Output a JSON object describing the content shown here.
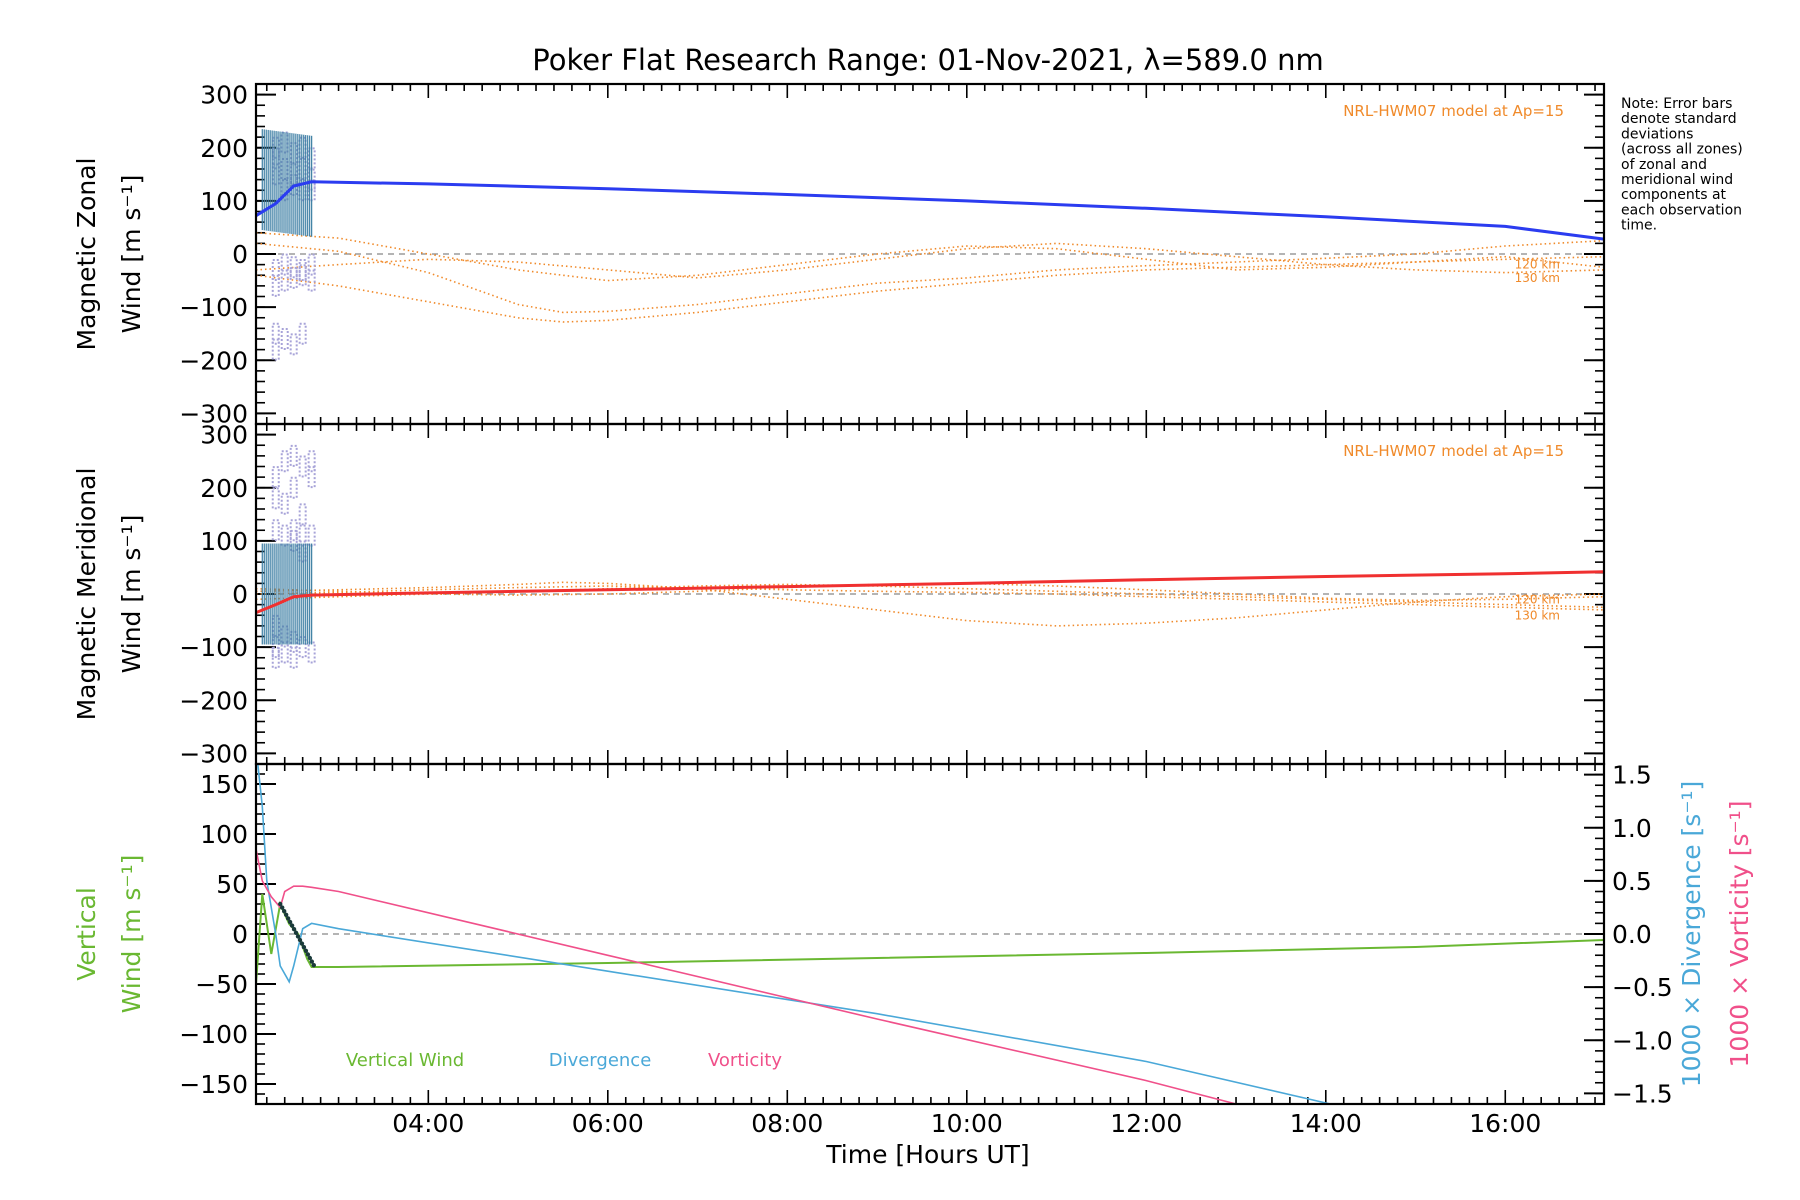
{
  "title": "Poker Flat Research Range: 01-Nov-2021, λ=589.0 nm",
  "note_lines": [
    "Note: Error bars",
    "denote standard",
    "deviations",
    "(across all zones)",
    "of zonal and",
    "meridional wind",
    "components at",
    "each observation",
    "time."
  ],
  "xlabel": "Time [Hours UT]",
  "chart_data": [
    {
      "type": "line",
      "name": "zonal",
      "ylabel_lines": [
        "Magnetic Zonal",
        "Wind [m s⁻¹]"
      ],
      "ylim": [
        -320,
        320
      ],
      "y_ticks": [
        300,
        200,
        100,
        0,
        -100,
        -200,
        -300
      ],
      "annotation": "NRL-HWM07 model at Ap=15",
      "model_labels": [
        "120 km",
        "130 km"
      ],
      "colors": {
        "main": "#2b3cf0",
        "light": "#5aa6e0",
        "model": "#f08a2a",
        "scatter": "#a7a3d8",
        "errorbar": "#3c7ea3"
      },
      "main_series": {
        "x": [
          2.08,
          2.3,
          2.5,
          2.7,
          4,
          6,
          8,
          10,
          12,
          14,
          16,
          17.1
        ],
        "y": [
          72,
          95,
          128,
          136,
          132,
          123,
          112,
          100,
          86,
          70,
          52,
          28
        ]
      },
      "model_series": [
        {
          "x": [
            2.08,
            3,
            4,
            5,
            5.5,
            6,
            7,
            8,
            9,
            10,
            11,
            12,
            13,
            14,
            15,
            16,
            17.1
          ],
          "y": [
            20,
            5,
            -35,
            -95,
            -110,
            -108,
            -95,
            -75,
            -55,
            -45,
            -30,
            -22,
            -15,
            -8,
            0,
            15,
            25
          ]
        },
        {
          "x": [
            2.08,
            3,
            4,
            5,
            5.5,
            6,
            7,
            8,
            9,
            10,
            11,
            12,
            13,
            14,
            15,
            16,
            17.1
          ],
          "y": [
            -40,
            -60,
            -90,
            -120,
            -128,
            -125,
            -110,
            -90,
            -70,
            -55,
            -40,
            -30,
            -25,
            -20,
            -15,
            -10,
            -5
          ]
        },
        {
          "x": [
            2.08,
            3,
            4,
            5,
            6,
            7,
            8,
            9,
            10,
            11,
            12,
            13,
            14,
            15,
            16,
            17.1
          ],
          "y": [
            40,
            30,
            0,
            -30,
            -50,
            -40,
            -20,
            0,
            15,
            10,
            -10,
            -30,
            -25,
            -15,
            -5,
            -25
          ]
        },
        {
          "x": [
            2.08,
            3,
            4,
            5,
            6,
            7,
            8,
            9,
            10,
            11,
            12,
            13,
            14,
            15,
            16,
            17.1
          ],
          "y": [
            -30,
            -20,
            -10,
            -15,
            -30,
            -45,
            -30,
            -10,
            10,
            20,
            10,
            -5,
            -20,
            -30,
            -35,
            -30
          ]
        }
      ]
    },
    {
      "type": "line",
      "name": "meridional",
      "ylabel_lines": [
        "Magnetic Meridional",
        "Wind [m s⁻¹]"
      ],
      "ylim": [
        -320,
        320
      ],
      "y_ticks": [
        300,
        200,
        100,
        0,
        -100,
        -200,
        -300
      ],
      "annotation": "NRL-HWM07 model at Ap=15",
      "model_labels": [
        "120 km",
        "130 km"
      ],
      "colors": {
        "main": "#f03030",
        "light": "#f7a0a0",
        "model": "#f08a2a",
        "scatter": "#a7a3d8",
        "errorbar": "#3c7ea3"
      },
      "main_series": {
        "x": [
          2.08,
          2.3,
          2.5,
          2.7,
          4,
          6,
          8,
          10,
          12,
          14,
          16,
          17.1
        ],
        "y": [
          -35,
          -20,
          -5,
          -2,
          2,
          8,
          14,
          20,
          27,
          33,
          38,
          42
        ]
      },
      "model_series": [
        {
          "x": [
            2.08,
            3,
            4,
            5,
            5.5,
            6,
            7,
            8,
            9,
            10,
            11,
            12,
            13,
            14,
            15,
            16,
            17.1
          ],
          "y": [
            5,
            8,
            12,
            18,
            22,
            20,
            10,
            -10,
            -30,
            -50,
            -60,
            -55,
            -45,
            -30,
            -15,
            -5,
            0
          ]
        },
        {
          "x": [
            2.08,
            3,
            4,
            5,
            6,
            7,
            8,
            9,
            10,
            11,
            12,
            13,
            14,
            15,
            16,
            17.1
          ],
          "y": [
            0,
            3,
            8,
            12,
            15,
            12,
            8,
            5,
            3,
            0,
            -5,
            -10,
            -15,
            -20,
            -25,
            -30
          ]
        },
        {
          "x": [
            2.08,
            3,
            4,
            5,
            6,
            7,
            8,
            9,
            10,
            11,
            12,
            13,
            14,
            15,
            16,
            17.1
          ],
          "y": [
            10,
            5,
            0,
            -2,
            0,
            5,
            12,
            18,
            20,
            15,
            8,
            0,
            -8,
            -12,
            -10,
            -5
          ]
        },
        {
          "x": [
            2.08,
            3,
            4,
            5,
            6,
            7,
            8,
            9,
            10,
            11,
            12,
            13,
            14,
            15,
            16,
            17.1
          ],
          "y": [
            -10,
            -5,
            0,
            5,
            10,
            15,
            18,
            15,
            10,
            5,
            0,
            -5,
            -10,
            -15,
            -20,
            -25
          ]
        }
      ]
    },
    {
      "type": "line",
      "name": "vertical",
      "ylabel_lines": [
        "Vertical",
        "Wind [m s⁻¹]"
      ],
      "ylim": [
        -170,
        170
      ],
      "y_ticks": [
        150,
        100,
        50,
        0,
        -50,
        -100,
        -150
      ],
      "right_axis": {
        "ylim": [
          -1.6,
          1.6
        ],
        "ticks": [
          1.5,
          1.0,
          0.5,
          0.0,
          -0.5,
          -1.0,
          -1.5
        ],
        "tick_labels": [
          "1.5",
          "1.0",
          "0.5",
          "0.0",
          "−0.5",
          "−1.0",
          "−1.5"
        ]
      },
      "right_labels": [
        {
          "text": "1000 × Divergence [s⁻¹]",
          "color": "#4aa8d8"
        },
        {
          "text": "1000 × Vorticity [s⁻¹]",
          "color": "#f0508a"
        }
      ],
      "legend": [
        {
          "text": "Vertical Wind",
          "color": "#6ab832"
        },
        {
          "text": "Divergence",
          "color": "#4aa8d8"
        },
        {
          "text": "Vorticity",
          "color": "#f0508a"
        }
      ],
      "colors": {
        "vertical": "#6ab832",
        "divergence": "#4aa8d8",
        "vorticity": "#f0508a",
        "dots": "#1a3a3a"
      },
      "vertical_series": {
        "x": [
          2.08,
          2.15,
          2.25,
          2.35,
          2.45,
          2.55,
          2.65,
          2.7,
          3,
          6,
          9,
          12,
          15,
          17.1
        ],
        "y": [
          -50,
          40,
          -20,
          30,
          10,
          0,
          -25,
          -33,
          -33,
          -29,
          -24,
          -19,
          -13,
          -6
        ]
      },
      "divergence_series": {
        "x": [
          2.1,
          2.15,
          2.2,
          2.3,
          2.35,
          2.45,
          2.5,
          2.6,
          2.7,
          3,
          6,
          9,
          12,
          14.05
        ],
        "y": [
          1.6,
          1.2,
          0.5,
          0.0,
          -0.3,
          -0.45,
          -0.3,
          0.05,
          0.1,
          0.05,
          -0.35,
          -0.75,
          -1.2,
          -1.6
        ]
      },
      "vorticity_series": {
        "x": [
          2.08,
          2.15,
          2.25,
          2.35,
          2.4,
          2.5,
          2.6,
          2.7,
          3,
          6,
          9,
          12,
          13.0
        ],
        "y": [
          0.8,
          0.5,
          0.35,
          0.25,
          0.4,
          0.45,
          0.45,
          0.44,
          0.4,
          -0.2,
          -0.8,
          -1.38,
          -1.6
        ]
      }
    }
  ],
  "x_axis": {
    "xlim": [
      2.08,
      17.1
    ],
    "tick_hours": [
      4,
      6,
      8,
      10,
      12,
      14,
      16
    ],
    "tick_labels": [
      "04:00",
      "06:00",
      "08:00",
      "10:00",
      "12:00",
      "14:00",
      "16:00"
    ]
  }
}
